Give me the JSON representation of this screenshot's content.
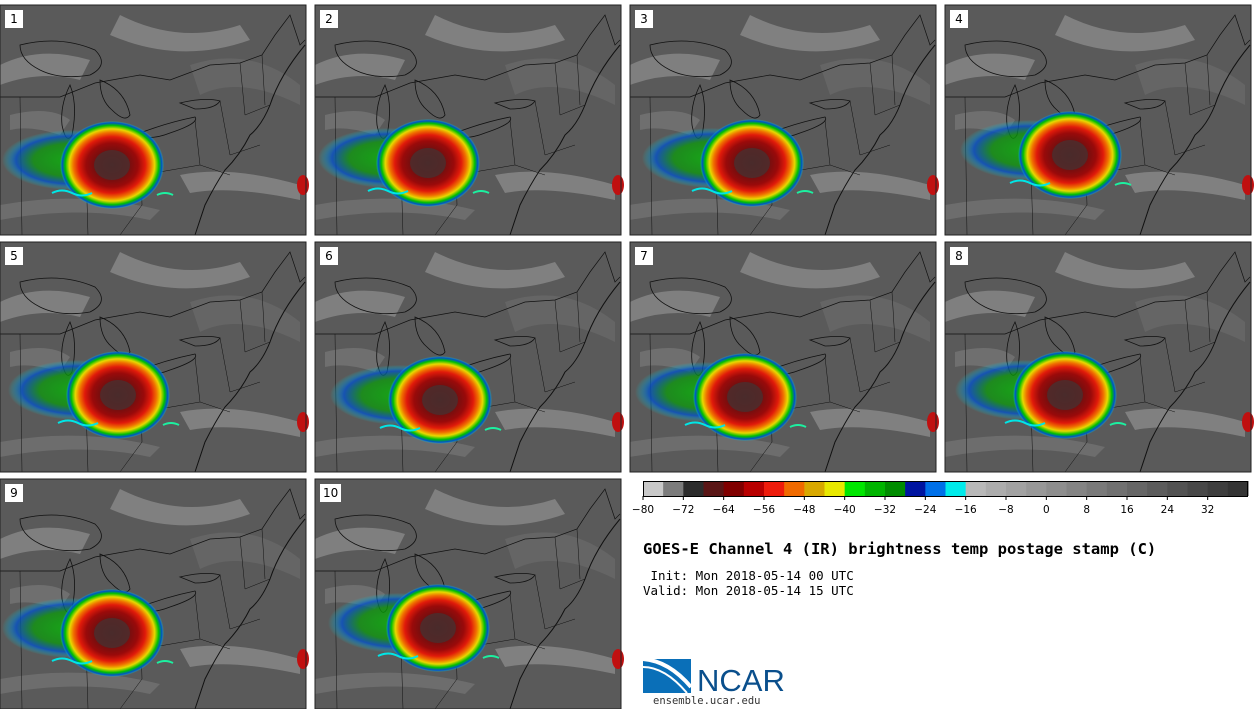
{
  "panels": [
    {
      "label": "1"
    },
    {
      "label": "2"
    },
    {
      "label": "3"
    },
    {
      "label": "4"
    },
    {
      "label": "5"
    },
    {
      "label": "6"
    },
    {
      "label": "7"
    },
    {
      "label": "8"
    },
    {
      "label": "9"
    },
    {
      "label": "10"
    }
  ],
  "colorbar": {
    "tick_labels": [
      "-80",
      "-72",
      "-64",
      "-56",
      "-48",
      "-40",
      "-32",
      "-24",
      "-16",
      "-8",
      "0",
      "8",
      "16",
      "24",
      "32"
    ],
    "tick_values": [
      -80,
      -72,
      -64,
      -56,
      -48,
      -40,
      -32,
      -24,
      -16,
      -8,
      0,
      8,
      16,
      24,
      32
    ],
    "range": [
      -80,
      40
    ],
    "colors": [
      "#c8c8c8",
      "#7c7c7c",
      "#2c2c2c",
      "#5a1616",
      "#800000",
      "#b80000",
      "#ee1c0c",
      "#f06a00",
      "#d8a800",
      "#e8e800",
      "#00e600",
      "#00b400",
      "#008c00",
      "#0014a0",
      "#0070e8",
      "#00eaea",
      "#b8b8b8",
      "#acacac",
      "#a2a2a2",
      "#989898",
      "#8e8e8e",
      "#848484",
      "#7a7a7a",
      "#707070",
      "#666666",
      "#5c5c5c",
      "#525252",
      "#484848",
      "#3e3e3e",
      "#343434"
    ]
  },
  "title": "GOES-E Channel 4 (IR) brightness temp postage stamp (C)",
  "init": " Init: Mon 2018-05-14 00 UTC",
  "valid": "Valid: Mon 2018-05-14 15 UTC",
  "logo": {
    "text": "NCAR",
    "url": "ensemble.ucar.edu"
  },
  "map_colors": {
    "background": "#5a5a5a",
    "clouds_light": "#a0a0a0",
    "boundary": "#111111"
  }
}
